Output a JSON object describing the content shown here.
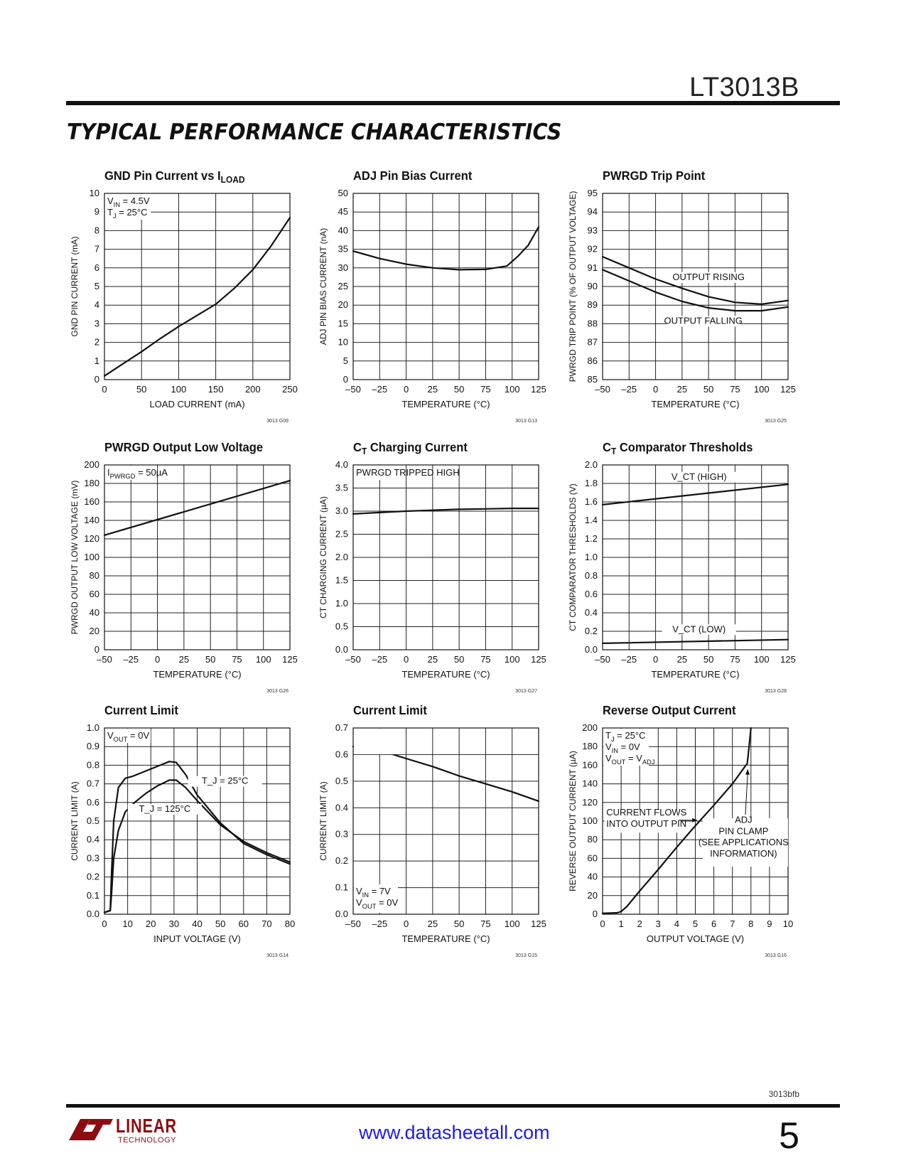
{
  "header": {
    "part_number": "LT3013B",
    "section_title": "TYPICAL PERFORMANCE CHARACTERISTICS"
  },
  "footer": {
    "doc_code": "3013bfb",
    "url": "www.datasheetall.com",
    "page_number": "5",
    "logo_text": "LINEAR",
    "logo_subtext": "TECHNOLOGY"
  },
  "colors": {
    "ink": "#111111",
    "grid": "#000000",
    "url": "#1a1aff",
    "logo": "#8b0d12"
  },
  "chart_data": [
    {
      "type": "line",
      "title": "GND Pin Current vs I",
      "title_sub": "LOAD",
      "xlabel": "LOAD CURRENT (mA)",
      "ylabel": "GND PIN CURRENT (mA)",
      "xlim": [
        0,
        250
      ],
      "ylim": [
        0,
        10
      ],
      "xticks": [
        0,
        50,
        100,
        150,
        200,
        250
      ],
      "yticks": [
        0,
        1,
        2,
        3,
        4,
        5,
        6,
        7,
        8,
        9,
        10
      ],
      "xgrid": 5,
      "ygrid": 10,
      "code": "3013 G09",
      "annotations": [
        [
          "V",
          "IN",
          " = 4.5V"
        ],
        [
          "T",
          "J",
          " = 25°C"
        ]
      ],
      "series": [
        {
          "x": [
            0,
            25,
            50,
            75,
            100,
            125,
            150,
            175,
            200,
            225,
            250
          ],
          "y": [
            0.2,
            0.85,
            1.5,
            2.2,
            2.85,
            3.45,
            4.05,
            4.9,
            5.9,
            7.2,
            8.7
          ]
        }
      ]
    },
    {
      "type": "line",
      "title": "ADJ Pin Bias Current",
      "title_sub": "",
      "xlabel": "TEMPERATURE (°C)",
      "ylabel": "ADJ PIN BIAS CURRENT (nA)",
      "xlim": [
        -50,
        125
      ],
      "ylim": [
        0,
        50
      ],
      "xticks": [
        -50,
        -25,
        0,
        25,
        50,
        75,
        100,
        125
      ],
      "yticks": [
        0,
        5,
        10,
        15,
        20,
        25,
        30,
        35,
        40,
        45,
        50
      ],
      "xgrid": 7,
      "ygrid": 10,
      "code": "3013 G13",
      "annotations": [],
      "series": [
        {
          "x": [
            -50,
            -25,
            0,
            25,
            50,
            75,
            95,
            105,
            115,
            125
          ],
          "y": [
            34.5,
            32.5,
            31,
            30,
            29.5,
            29.6,
            30.5,
            33,
            36,
            41
          ]
        }
      ]
    },
    {
      "type": "line",
      "title": "PWRGD Trip Point",
      "title_sub": "",
      "xlabel": "TEMPERATURE (°C)",
      "ylabel": "PWRGD TRIP POINT (% OF OUTPUT VOLTAGE)",
      "xlim": [
        -50,
        125
      ],
      "ylim": [
        85,
        95
      ],
      "xticks": [
        -50,
        -25,
        0,
        25,
        50,
        75,
        100,
        125
      ],
      "yticks": [
        85,
        86,
        87,
        88,
        89,
        90,
        91,
        92,
        93,
        94,
        95
      ],
      "xgrid": 7,
      "ygrid": 10,
      "code": "3013 G25",
      "annotations": [],
      "series": [
        {
          "name": "OUTPUT RISING",
          "x": [
            -50,
            -25,
            0,
            25,
            50,
            75,
            100,
            125
          ],
          "y": [
            91.6,
            91.0,
            90.4,
            89.9,
            89.45,
            89.15,
            89.05,
            89.25
          ]
        },
        {
          "name": "OUTPUT FALLING",
          "x": [
            -50,
            -25,
            0,
            25,
            50,
            75,
            100,
            125
          ],
          "y": [
            90.9,
            90.3,
            89.7,
            89.2,
            88.85,
            88.7,
            88.7,
            88.9
          ]
        }
      ]
    },
    {
      "type": "line",
      "title": "PWRGD Output Low Voltage",
      "title_sub": "",
      "xlabel": "TEMPERATURE (°C)",
      "ylabel": "PWRGD OUTPUT LOW VOLTAGE (mV)",
      "xlim": [
        -50,
        125
      ],
      "ylim": [
        0,
        200
      ],
      "xticks": [
        -50,
        -25,
        0,
        25,
        50,
        75,
        100,
        125
      ],
      "yticks": [
        0,
        20,
        40,
        60,
        80,
        100,
        120,
        140,
        160,
        180,
        200
      ],
      "xgrid": 7,
      "ygrid": 10,
      "code": "3013 G26",
      "annotations": [
        [
          "I",
          "PWRGD",
          " = 50µA"
        ]
      ],
      "series": [
        {
          "x": [
            -50,
            125
          ],
          "y": [
            124,
            183
          ]
        }
      ]
    },
    {
      "type": "line",
      "title": "C",
      "title_sub": "T",
      "title_rest": " Charging Current",
      "xlabel": "TEMPERATURE (°C)",
      "ylabel": "CT CHARGING CURRENT (µA)",
      "xlim": [
        -50,
        125
      ],
      "ylim": [
        0,
        4.0
      ],
      "xticks": [
        -50,
        -25,
        0,
        25,
        50,
        75,
        100,
        125
      ],
      "yticks": [
        0,
        0.5,
        1.0,
        1.5,
        2.0,
        2.5,
        3.0,
        3.5,
        4.0
      ],
      "xgrid": 7,
      "ygrid": 8,
      "code": "3013 G27",
      "annotations": [
        [
          "PWRGD TRIPPED HIGH",
          "",
          ""
        ]
      ],
      "series": [
        {
          "x": [
            -50,
            -25,
            0,
            25,
            50,
            75,
            100,
            125
          ],
          "y": [
            2.94,
            2.97,
            3.0,
            3.02,
            3.04,
            3.05,
            3.06,
            3.06
          ]
        }
      ]
    },
    {
      "type": "line",
      "title": "C",
      "title_sub": "T",
      "title_rest": " Comparator Thresholds",
      "xlabel": "TEMPERATURE (°C)",
      "ylabel": "CT COMPARATOR THRESHOLDS (V)",
      "xlim": [
        -50,
        125
      ],
      "ylim": [
        0,
        2.0
      ],
      "xticks": [
        -50,
        -25,
        0,
        25,
        50,
        75,
        100,
        125
      ],
      "yticks": [
        0,
        0.2,
        0.4,
        0.6,
        0.8,
        1.0,
        1.2,
        1.4,
        1.6,
        1.8,
        2.0
      ],
      "xgrid": 7,
      "ygrid": 10,
      "code": "3013 G28",
      "annotations": [],
      "series": [
        {
          "name": "V_CT (HIGH)",
          "x": [
            -50,
            125
          ],
          "y": [
            1.57,
            1.79
          ]
        },
        {
          "name": "V_CT (LOW)",
          "x": [
            -50,
            125
          ],
          "y": [
            0.07,
            0.11
          ]
        }
      ]
    },
    {
      "type": "line",
      "title": "Current Limit",
      "title_sub": "",
      "xlabel": "INPUT VOLTAGE (V)",
      "ylabel": "CURRENT LIMIT (A)",
      "xlim": [
        0,
        80
      ],
      "ylim": [
        0,
        1.0
      ],
      "xticks": [
        0,
        10,
        20,
        30,
        40,
        50,
        60,
        70,
        80
      ],
      "yticks": [
        0,
        0.1,
        0.2,
        0.3,
        0.4,
        0.5,
        0.6,
        0.7,
        0.8,
        0.9,
        1.0
      ],
      "xgrid": 8,
      "ygrid": 10,
      "code": "3013 G14",
      "annotations": [
        [
          "V",
          "OUT",
          " = 0V"
        ]
      ],
      "series": [
        {
          "name": "T_J = 25°C",
          "x": [
            0,
            2.5,
            3,
            4,
            6,
            9,
            12,
            20,
            28,
            31,
            35,
            40,
            50,
            60,
            70,
            80
          ],
          "y": [
            0.01,
            0.02,
            0.2,
            0.5,
            0.68,
            0.73,
            0.74,
            0.78,
            0.82,
            0.815,
            0.75,
            0.64,
            0.49,
            0.38,
            0.32,
            0.27
          ]
        },
        {
          "name": "T_J = 125°C",
          "x": [
            0,
            2.5,
            3,
            4,
            6,
            9,
            13,
            18,
            23,
            28,
            31,
            35,
            40,
            50,
            60,
            70,
            80
          ],
          "y": [
            0.01,
            0.02,
            0.1,
            0.3,
            0.45,
            0.55,
            0.6,
            0.65,
            0.69,
            0.72,
            0.72,
            0.68,
            0.61,
            0.48,
            0.39,
            0.33,
            0.28
          ]
        }
      ]
    },
    {
      "type": "line",
      "title": "Current Limit",
      "title_sub": "",
      "xlabel": "TEMPERATURE (°C)",
      "ylabel": "CURRENT LIMIT (A)",
      "xlim": [
        -50,
        125
      ],
      "ylim": [
        0,
        0.7
      ],
      "xticks": [
        -50,
        -25,
        0,
        25,
        50,
        75,
        100,
        125
      ],
      "yticks": [
        0,
        0.1,
        0.2,
        0.3,
        0.4,
        0.5,
        0.6,
        0.7
      ],
      "xgrid": 7,
      "ygrid": 7,
      "code": "3013 G15",
      "annotations": [
        [
          "V",
          "IN",
          " = 7V"
        ],
        [
          "V",
          "OUT",
          " = 0V"
        ]
      ],
      "series": [
        {
          "x": [
            -50,
            -35,
            -20,
            0,
            25,
            50,
            75,
            100,
            125
          ],
          "y": [
            0.63,
            0.625,
            0.61,
            0.585,
            0.555,
            0.52,
            0.49,
            0.46,
            0.425
          ]
        }
      ]
    },
    {
      "type": "line",
      "title": "Reverse Output Current",
      "title_sub": "",
      "xlabel": "OUTPUT VOLTAGE (V)",
      "ylabel": "REVERSE OUTPUT CURRENT (µA)",
      "xlim": [
        0,
        10
      ],
      "ylim": [
        0,
        200
      ],
      "xticks": [
        0,
        1,
        2,
        3,
        4,
        5,
        6,
        7,
        8,
        9,
        10
      ],
      "yticks": [
        0,
        20,
        40,
        60,
        80,
        100,
        120,
        140,
        160,
        180,
        200
      ],
      "xgrid": 10,
      "ygrid": 10,
      "code": "3013 G16",
      "annotations": [
        [
          "T",
          "J",
          " = 25°C"
        ],
        [
          "V",
          "IN",
          " = 0V"
        ],
        [
          "V",
          "OUT",
          " = V",
          "ADJ"
        ]
      ],
      "notes": [
        "CURRENT FLOWS",
        "INTO OUTPUT PIN",
        "ADJ",
        "PIN CLAMP",
        "(SEE APPLICATIONS",
        "INFORMATION)"
      ],
      "series": [
        {
          "x": [
            0,
            0.8,
            1.0,
            1.3,
            2,
            3,
            4,
            5,
            6,
            7,
            7.8,
            7.9,
            8.0
          ],
          "y": [
            1,
            1.5,
            3,
            8,
            25,
            48,
            72,
            95,
            117,
            140,
            162,
            180,
            200
          ]
        }
      ]
    }
  ]
}
